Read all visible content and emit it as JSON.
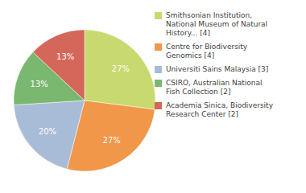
{
  "chart_data": {
    "type": "pie",
    "categories": [
      "Smithsonian Institution,\nNational Museum of Natural\nHistory... [4]",
      "Centre for Biodiversity\nGenomics [4]",
      "Universiti Sains Malaysia [3]",
      "CSIRO, Australian National\nFish Collection [2]",
      "Academia Sinica, Biodiversity\nResearch Center [2]"
    ],
    "values": [
      27,
      27,
      20,
      13,
      13
    ],
    "value_labels": [
      "27%",
      "27%",
      "20%",
      "13%",
      "13%"
    ],
    "colors": [
      "#c8d96f",
      "#f0974a",
      "#a8bcd8",
      "#7ab870",
      "#d4675a"
    ],
    "data_labels": true,
    "legend": "upper right"
  }
}
